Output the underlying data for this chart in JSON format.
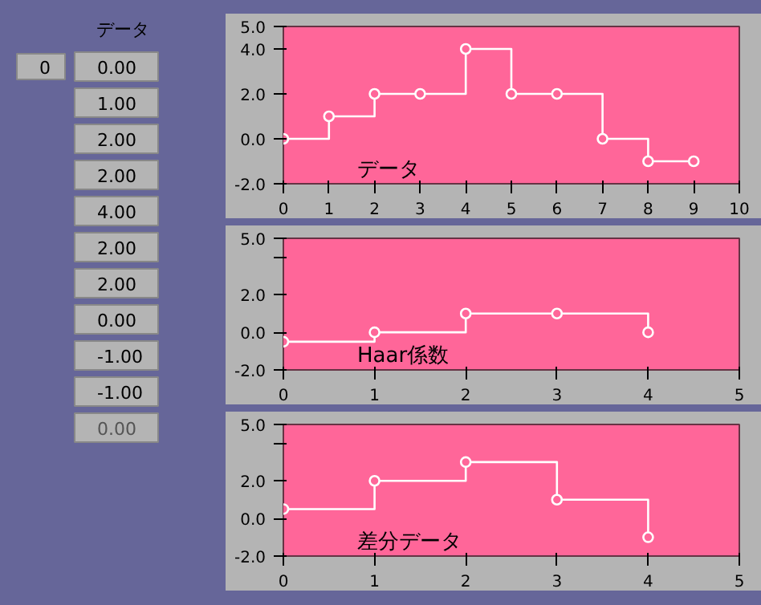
{
  "chart_data": [
    {
      "type": "other",
      "title": "データ",
      "annotations": [
        "0",
        "0.00",
        "1.00",
        "2.00",
        "2.00",
        "4.00",
        "2.00",
        "2.00",
        "0.00",
        "-1.00",
        "-1.00",
        "0.00"
      ]
    },
    {
      "type": "step",
      "title": "データ",
      "x": [
        0,
        1,
        2,
        3,
        4,
        5,
        6,
        7,
        8,
        9
      ],
      "marker": "circle",
      "grid": false,
      "series": [
        {
          "color": "#ffffff",
          "values": [
            0,
            1,
            2,
            2,
            4,
            2,
            2,
            0,
            -1,
            -1
          ]
        }
      ],
      "xlim": [
        0,
        10
      ],
      "xticks": [
        0,
        1,
        2,
        3,
        4,
        5,
        6,
        7,
        8,
        9,
        10
      ],
      "ylim": [
        -2,
        5
      ],
      "yticks": [
        {
          "value": -2,
          "label": "-2.0"
        },
        {
          "value": 0,
          "label": "0.0"
        },
        {
          "value": 2,
          "label": "2.0"
        },
        {
          "value": 4,
          "label": "4.0"
        },
        {
          "value": 5,
          "label": "5.0"
        }
      ]
    },
    {
      "type": "step",
      "title": "Haar係数",
      "x": [
        0,
        1,
        2,
        3,
        4
      ],
      "marker": "circle",
      "grid": false,
      "series": [
        {
          "color": "#ffffff",
          "values": [
            -0.5,
            0,
            1,
            1,
            0
          ]
        }
      ],
      "xlim": [
        0,
        5
      ],
      "xticks": [
        0,
        1,
        2,
        3,
        4,
        5
      ],
      "ylim": [
        -2,
        5
      ],
      "yticks": [
        {
          "value": -2,
          "label": "-2.0"
        },
        {
          "value": 0,
          "label": "0.0"
        },
        {
          "value": 2,
          "label": "2.0"
        },
        {
          "value": 4,
          "label": null
        },
        {
          "value": 5,
          "label": "5.0"
        }
      ]
    },
    {
      "type": "step",
      "title": "差分データ",
      "x": [
        0,
        1,
        2,
        3,
        4
      ],
      "marker": "circle",
      "grid": false,
      "series": [
        {
          "color": "#ffffff",
          "values": [
            0.5,
            2,
            3,
            1,
            -1
          ]
        }
      ],
      "xlim": [
        0,
        5
      ],
      "xticks": [
        0,
        1,
        2,
        3,
        4,
        5
      ],
      "ylim": [
        -2,
        5
      ],
      "yticks": [
        {
          "value": -2,
          "label": "-2.0"
        },
        {
          "value": 0,
          "label": "0.0"
        },
        {
          "value": 2,
          "label": "2.0"
        },
        {
          "value": 4,
          "label": null
        },
        {
          "value": 5,
          "label": "5.0"
        }
      ]
    }
  ]
}
